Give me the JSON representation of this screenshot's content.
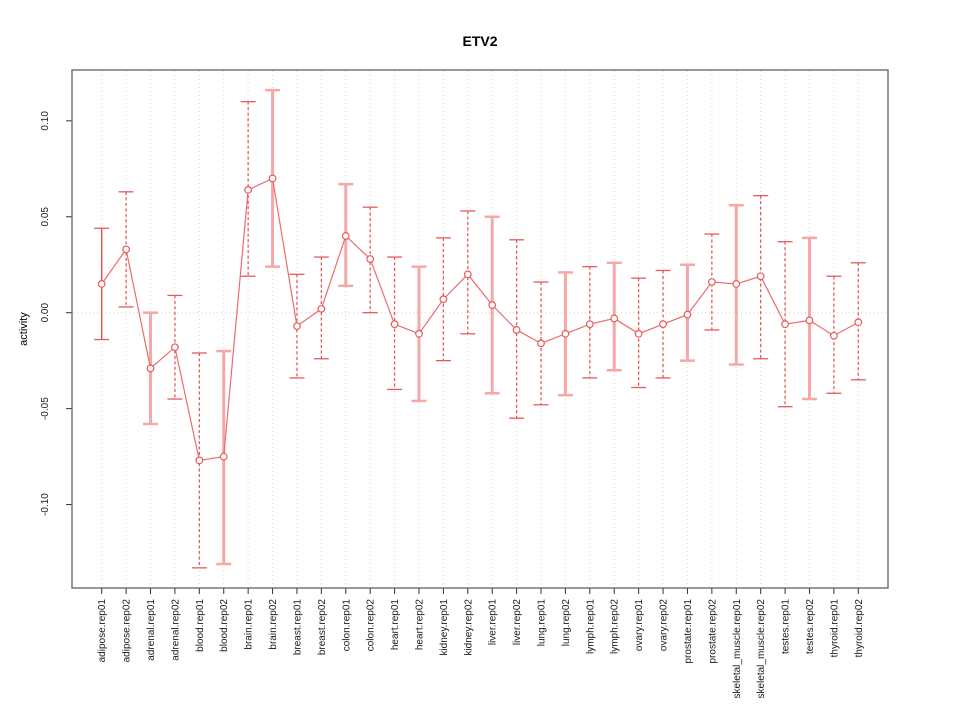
{
  "chart_data": {
    "type": "line",
    "title": "ETV2",
    "xlabel": "",
    "ylabel": "activity",
    "ylim": [
      -0.1435,
      0.1265
    ],
    "yticks": [
      0.1,
      0.05,
      0.0,
      -0.05,
      -0.1
    ],
    "ytick_labels": [
      "0.10",
      "0.05",
      "0.00",
      "-0.05",
      "-0.10"
    ],
    "zero_reference_line": 0,
    "grid": "vertical-dotted-per-category",
    "legend": null,
    "colors": {
      "point": "#e85a5a",
      "line": "#f06a6a",
      "bar_dark": "#e85a5a",
      "bar_pale": "#f6a8a8",
      "grid": "#d8d8d8",
      "zero_line": "#cfcfcf",
      "axis_box": "#555555",
      "tick": "#333333",
      "text": "#000000"
    },
    "categories": [
      "adipose.rep01",
      "adipose.rep02",
      "adrenal.rep01",
      "adrenal.rep02",
      "blood.rep01",
      "blood.rep02",
      "brain.rep01",
      "brain.rep02",
      "breast.rep01",
      "breast.rep02",
      "colon.rep01",
      "colon.rep02",
      "heart.rep01",
      "heart.rep02",
      "kidney.rep01",
      "kidney.rep02",
      "liver.rep01",
      "liver.rep02",
      "lung.rep01",
      "lung.rep02",
      "lymph.rep01",
      "lymph.rep02",
      "ovary.rep01",
      "ovary.rep02",
      "prostate.rep01",
      "prostate.rep02",
      "skeletal_muscle.rep01",
      "skeletal_muscle.rep02",
      "testes.rep01",
      "testes.rep02",
      "thyroid.rep01",
      "thyroid.rep02"
    ],
    "series": [
      {
        "name": "activity",
        "values": [
          0.015,
          0.033,
          -0.029,
          -0.018,
          -0.077,
          -0.075,
          0.064,
          0.07,
          -0.007,
          0.002,
          0.04,
          0.028,
          -0.006,
          -0.011,
          0.007,
          0.02,
          0.004,
          -0.009,
          -0.016,
          -0.011,
          -0.006,
          -0.003,
          -0.011,
          -0.006,
          -0.001,
          0.016,
          0.015,
          0.019,
          -0.006,
          -0.004,
          -0.012,
          -0.005
        ],
        "lower": [
          -0.014,
          0.003,
          -0.058,
          -0.045,
          -0.133,
          -0.131,
          0.019,
          0.024,
          -0.034,
          -0.024,
          0.014,
          0.0,
          -0.04,
          -0.046,
          -0.025,
          -0.011,
          -0.042,
          -0.055,
          -0.048,
          -0.043,
          -0.034,
          -0.03,
          -0.039,
          -0.034,
          -0.025,
          -0.009,
          -0.027,
          -0.024,
          -0.049,
          -0.045,
          -0.042,
          -0.035
        ],
        "upper": [
          0.044,
          0.063,
          0.0,
          0.009,
          -0.021,
          -0.02,
          0.11,
          0.116,
          0.02,
          0.029,
          0.067,
          0.055,
          0.029,
          0.024,
          0.039,
          0.053,
          0.05,
          0.038,
          0.016,
          0.021,
          0.024,
          0.026,
          0.018,
          0.022,
          0.025,
          0.041,
          0.056,
          0.061,
          0.037,
          0.039,
          0.019,
          0.026
        ],
        "bar_styles": [
          "solid",
          "dashed",
          "pale",
          "dashed",
          "dashed",
          "pale",
          "dashed",
          "pale",
          "dashed",
          "dashed",
          "pale",
          "dashed",
          "dashed",
          "pale",
          "dashed",
          "dashed",
          "pale",
          "dashed",
          "dashed",
          "pale",
          "dashed",
          "pale",
          "dashed",
          "dashed",
          "pale",
          "dashed",
          "pale",
          "dashed",
          "dashed",
          "pale",
          "dashed",
          "dashed"
        ]
      }
    ]
  }
}
